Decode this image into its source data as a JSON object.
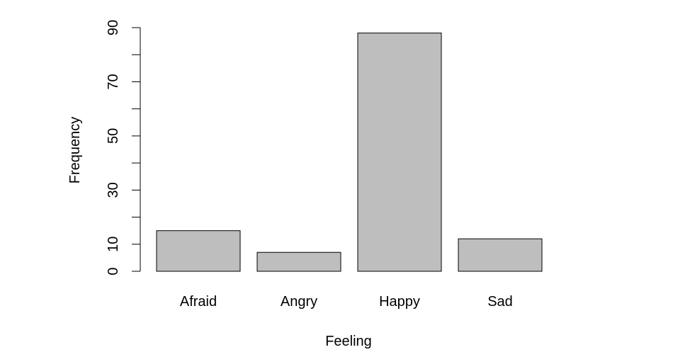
{
  "chart_data": {
    "type": "bar",
    "categories": [
      "Afraid",
      "Angry",
      "Happy",
      "Sad"
    ],
    "values": [
      15,
      7,
      88,
      12
    ],
    "title": "",
    "xlabel": "Feeling",
    "ylabel": "Frequency",
    "ylim": [
      0,
      90
    ],
    "y_ticks": [
      0,
      10,
      20,
      30,
      40,
      50,
      60,
      70,
      80,
      90
    ],
    "y_tick_labels": [
      "0",
      "10",
      "30",
      "50",
      "70",
      "90"
    ],
    "grid": false,
    "legend": "none",
    "bar_color": "#bebebe",
    "bar_edge_color": "#000000"
  }
}
